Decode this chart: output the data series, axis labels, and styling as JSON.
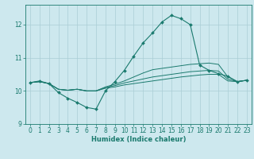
{
  "xlabel": "Humidex (Indice chaleur)",
  "xlim_min": -0.5,
  "xlim_max": 23.5,
  "ylim_min": 9.0,
  "ylim_max": 12.6,
  "yticks": [
    9,
    10,
    11,
    12
  ],
  "xticks": [
    0,
    1,
    2,
    3,
    4,
    5,
    6,
    7,
    8,
    9,
    10,
    11,
    12,
    13,
    14,
    15,
    16,
    17,
    18,
    19,
    20,
    21,
    22,
    23
  ],
  "bg_color": "#cde8ee",
  "grid_color": "#aacdd5",
  "line_color": "#1a7a6e",
  "flat1_y": [
    10.25,
    10.28,
    10.22,
    10.05,
    10.02,
    10.05,
    10.0,
    10.0,
    10.08,
    10.12,
    10.18,
    10.22,
    10.26,
    10.3,
    10.34,
    10.38,
    10.42,
    10.45,
    10.48,
    10.5,
    10.5,
    10.3,
    10.28,
    10.32
  ],
  "flat2_y": [
    10.25,
    10.28,
    10.22,
    10.05,
    10.02,
    10.05,
    10.0,
    10.0,
    10.1,
    10.16,
    10.24,
    10.3,
    10.36,
    10.42,
    10.46,
    10.5,
    10.54,
    10.58,
    10.6,
    10.62,
    10.6,
    10.35,
    10.28,
    10.32
  ],
  "flat3_y": [
    10.25,
    10.28,
    10.22,
    10.05,
    10.02,
    10.05,
    10.0,
    10.0,
    10.12,
    10.2,
    10.3,
    10.42,
    10.54,
    10.64,
    10.68,
    10.72,
    10.76,
    10.8,
    10.82,
    10.84,
    10.8,
    10.42,
    10.28,
    10.32
  ],
  "main_x": [
    0,
    1,
    2,
    3,
    4,
    5,
    6,
    7,
    8,
    9,
    10,
    11,
    12,
    13,
    14,
    15,
    16,
    17,
    18,
    19,
    20,
    21,
    22,
    23
  ],
  "main_y": [
    10.25,
    10.3,
    10.22,
    9.95,
    9.78,
    9.65,
    9.5,
    9.45,
    10.0,
    10.28,
    10.62,
    11.05,
    11.45,
    11.75,
    12.08,
    12.28,
    12.18,
    12.0,
    10.78,
    10.62,
    10.52,
    10.44,
    10.28,
    10.32
  ]
}
